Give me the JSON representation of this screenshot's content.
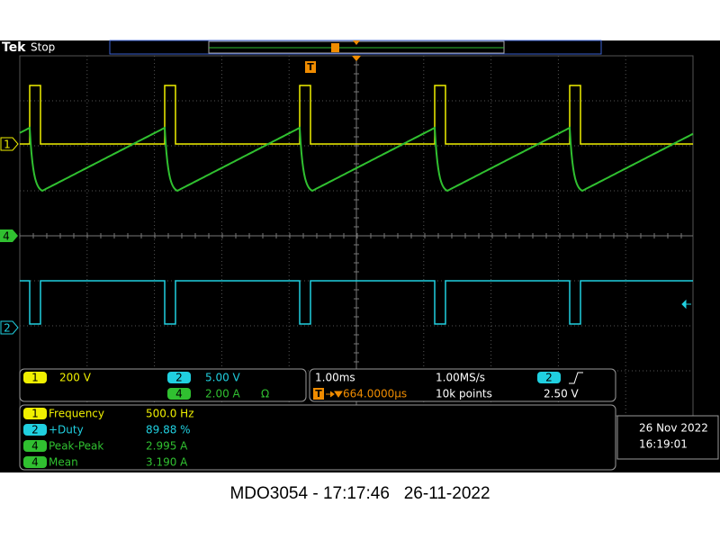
{
  "header": {
    "brand": "Tek",
    "status": "Stop"
  },
  "trigger_marker": "T",
  "channel_markers": [
    "1",
    "4",
    "2"
  ],
  "vertical": [
    {
      "channel": "1",
      "scale": "200 V"
    },
    {
      "channel": "2",
      "scale": "5.00 V"
    },
    {
      "channel": "4",
      "scale": "2.00 A",
      "unit_symbol": "Ω"
    }
  ],
  "horizontal": {
    "time_per_div": "1.00ms",
    "sample_rate": "1.00MS/s",
    "delay": "664.0000µs",
    "record_length": "10k points"
  },
  "trigger": {
    "source": "2",
    "level": "2.50 V"
  },
  "measurements": [
    {
      "channel": "1",
      "name": "Frequency",
      "value": "500.0 Hz"
    },
    {
      "channel": "2",
      "name": "+Duty",
      "value": "89.88 %"
    },
    {
      "channel": "4",
      "name": "Peak-Peak",
      "value": "2.995 A"
    },
    {
      "channel": "4",
      "name": "Mean",
      "value": "3.190 A"
    }
  ],
  "datetime": {
    "date": "26 Nov 2022",
    "time": "16:19:01"
  },
  "footer": "MDO3054 - 17:17:46   26-11-2022"
}
